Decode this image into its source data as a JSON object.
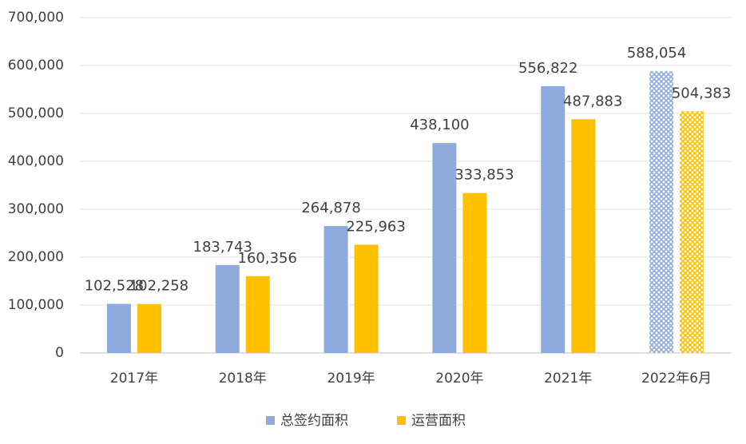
{
  "chart_data": {
    "type": "bar",
    "categories": [
      "2017年",
      "2018年",
      "2019年",
      "2020年",
      "2021年",
      "2022年6月"
    ],
    "series": [
      {
        "name": "总签约面积",
        "color": "#8faadc",
        "values": [
          102528,
          183743,
          264878,
          438100,
          556822,
          588054
        ],
        "value_labels": [
          "102,528",
          "183,743",
          "264,878",
          "438,100",
          "556,822",
          "588,054"
        ]
      },
      {
        "name": "运营面积",
        "color": "#ffc000",
        "values": [
          102258,
          160356,
          225963,
          333853,
          487883,
          504383
        ],
        "value_labels": [
          "102,258",
          "160,356",
          "225,963",
          "333,853",
          "487,883",
          "504,383"
        ]
      }
    ],
    "hatched": [
      false,
      false,
      false,
      false,
      false,
      true
    ],
    "ylim": [
      0,
      700000
    ],
    "yticks": [
      {
        "value": 0,
        "label": "0"
      },
      {
        "value": 100000,
        "label": "100,000"
      },
      {
        "value": 200000,
        "label": "200,000"
      },
      {
        "value": 300000,
        "label": "300,000"
      },
      {
        "value": 400000,
        "label": "400,000"
      },
      {
        "value": 500000,
        "label": "500,000"
      },
      {
        "value": 600000,
        "label": "600,000"
      },
      {
        "value": 700000,
        "label": "700,000"
      }
    ],
    "grid": true,
    "legend": "bottom"
  }
}
